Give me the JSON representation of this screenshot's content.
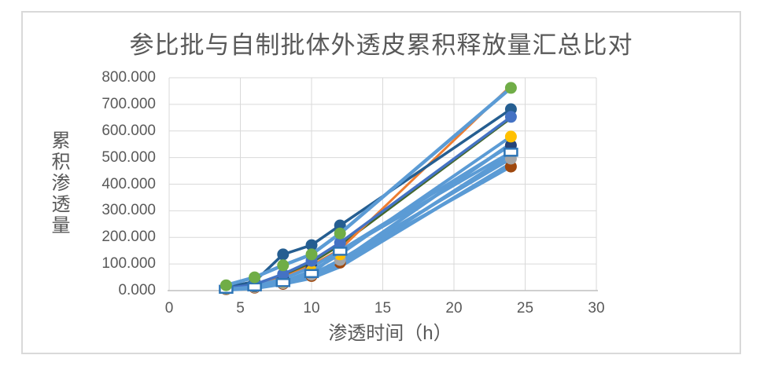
{
  "chart_data": {
    "type": "line",
    "title": "参比批与自制批体外透皮累积释放量汇总比对",
    "xlabel": "渗透时间（h）",
    "ylabel": "累积渗透量",
    "xlim": [
      0,
      30
    ],
    "ylim": [
      0,
      800
    ],
    "x_ticks": [
      0,
      5,
      10,
      15,
      20,
      25,
      30
    ],
    "y_ticks": [
      {
        "value": 800,
        "label": "800.000"
      },
      {
        "value": 700,
        "label": "700.000"
      },
      {
        "value": 600,
        "label": "600.000"
      },
      {
        "value": 500,
        "label": "500.000"
      },
      {
        "value": 400,
        "label": "400.000"
      },
      {
        "value": 300,
        "label": "300.000"
      },
      {
        "value": 200,
        "label": "200.000"
      },
      {
        "value": 100,
        "label": "100.000"
      },
      {
        "value": 0,
        "label": "0.000"
      }
    ],
    "grid": true,
    "legend": "none",
    "x": [
      4,
      6,
      8,
      10,
      12,
      24
    ],
    "series": [
      {
        "id": "lightblue-line-1",
        "line_color": "#5B9BD5",
        "line_width": 4.5,
        "marker": "none",
        "marker_color": null,
        "values": [
          5,
          13,
          33,
          60,
          108,
          552
        ]
      },
      {
        "id": "lightblue-line-2",
        "line_color": "#5B9BD5",
        "line_width": 4.5,
        "marker": "none",
        "marker_color": null,
        "values": [
          4,
          11,
          29,
          54,
          98,
          512
        ]
      },
      {
        "id": "lightblue-line-3",
        "line_color": "#5B9BD5",
        "line_width": 4.5,
        "marker": "none",
        "marker_color": null,
        "values": [
          3,
          9,
          25,
          47,
          90,
          478
        ]
      },
      {
        "id": "darkgreen-line",
        "line_color": "#43682B",
        "line_width": 3,
        "marker": "none",
        "marker_color": null,
        "values": [
          8,
          20,
          55,
          105,
          170,
          648
        ]
      },
      {
        "id": "orange-line",
        "line_color": "#ED7D31",
        "line_width": 3,
        "marker": "none",
        "marker_color": null,
        "values": [
          8,
          18,
          50,
          95,
          155,
          770
        ]
      },
      {
        "id": "teal-series",
        "line_color": "#255E91",
        "line_width": 3.5,
        "marker": "circle",
        "marker_color": "#255E91",
        "values": [
          12,
          34,
          136,
          171,
          245,
          682
        ]
      },
      {
        "id": "brown-series",
        "line_color": "#5B9BD5",
        "line_width": 4,
        "marker": "circle",
        "marker_color": "#9E480E",
        "values": [
          5,
          11,
          25,
          55,
          105,
          466
        ]
      },
      {
        "id": "gray-series",
        "line_color": "#5B9BD5",
        "line_width": 4,
        "marker": "circle",
        "marker_color": "#A5A5A5",
        "values": [
          6,
          13,
          28,
          60,
          115,
          496
        ]
      },
      {
        "id": "navy-series",
        "line_color": "#5B9BD5",
        "line_width": 4,
        "marker": "circle",
        "marker_color": "#264478",
        "values": [
          7,
          16,
          45,
          88,
          150,
          546
        ]
      },
      {
        "id": "yellow-series",
        "line_color": "#5B9BD5",
        "line_width": 4,
        "marker": "circle",
        "marker_color": "#FFC000",
        "values": [
          8,
          18,
          33,
          74,
          136,
          579
        ]
      },
      {
        "id": "blue-series",
        "line_color": "#4472C4",
        "line_width": 3.5,
        "marker": "circle",
        "marker_color": "#4472C4",
        "values": [
          9,
          23,
          62,
          112,
          180,
          653
        ]
      },
      {
        "id": "open-square-series",
        "line_color": "#5B9BD5",
        "line_width": 4,
        "marker": "open-square",
        "marker_color": "#2E75B6",
        "values": [
          5,
          14,
          30,
          64,
          148,
          520
        ]
      },
      {
        "id": "green-series",
        "line_color": "#5B9BD5",
        "line_width": 4.5,
        "marker": "circle",
        "marker_color": "#70AD47",
        "values": [
          20,
          50,
          95,
          136,
          215,
          762
        ]
      }
    ]
  },
  "style_colors": {
    "text": "#595959",
    "gridline": "#D9D9D9",
    "axis_line": "#BFBFBF",
    "frame_border": "#D9D9D9",
    "background": "#FFFFFF"
  }
}
